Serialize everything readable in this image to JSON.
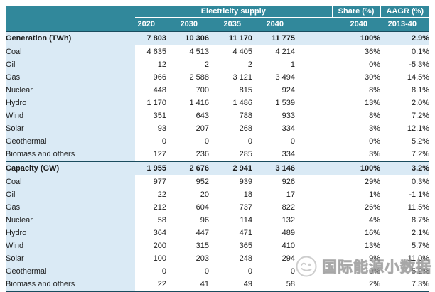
{
  "chart_data": {
    "type": "table",
    "header": {
      "group_electricity": "Electricity supply",
      "group_share": "Share (%)",
      "group_aagr": "AAGR (%)",
      "years": [
        "2020",
        "2030",
        "2035",
        "2040"
      ],
      "share_year": "2040",
      "aagr_period": "2013-40"
    },
    "sections": [
      {
        "title": "Generation (TWh)",
        "totals": {
          "values": [
            "7 803",
            "10 306",
            "11 170",
            "11 775"
          ],
          "share": "100%",
          "aagr": "2.9%"
        },
        "rows": [
          {
            "label": "Coal",
            "values": [
              "4 635",
              "4 513",
              "4 405",
              "4 214"
            ],
            "share": "36%",
            "aagr": "0.1%"
          },
          {
            "label": "Oil",
            "values": [
              "12",
              "2",
              "2",
              "1"
            ],
            "share": "0%",
            "aagr": "-5.3%"
          },
          {
            "label": "Gas",
            "values": [
              "966",
              "2 588",
              "3 121",
              "3 494"
            ],
            "share": "30%",
            "aagr": "14.5%"
          },
          {
            "label": "Nuclear",
            "values": [
              "448",
              "700",
              "815",
              "924"
            ],
            "share": "8%",
            "aagr": "8.1%"
          },
          {
            "label": "Hydro",
            "values": [
              "1 170",
              "1 416",
              "1 486",
              "1 539"
            ],
            "share": "13%",
            "aagr": "2.0%"
          },
          {
            "label": "Wind",
            "values": [
              "351",
              "643",
              "788",
              "933"
            ],
            "share": "8%",
            "aagr": "7.2%"
          },
          {
            "label": "Solar",
            "values": [
              "93",
              "207",
              "268",
              "334"
            ],
            "share": "3%",
            "aagr": "12.1%"
          },
          {
            "label": "Geothermal",
            "values": [
              "0",
              "0",
              "0",
              "0"
            ],
            "share": "0%",
            "aagr": "5.2%"
          },
          {
            "label": "Biomass and others",
            "values": [
              "127",
              "236",
              "285",
              "334"
            ],
            "share": "3%",
            "aagr": "7.2%"
          }
        ]
      },
      {
        "title": "Capacity (GW)",
        "totals": {
          "values": [
            "1 955",
            "2 676",
            "2 941",
            "3 146"
          ],
          "share": "100%",
          "aagr": "3.2%"
        },
        "rows": [
          {
            "label": "Coal",
            "values": [
              "977",
              "952",
              "939",
              "926"
            ],
            "share": "29%",
            "aagr": "0.3%"
          },
          {
            "label": "Oil",
            "values": [
              "22",
              "20",
              "18",
              "17"
            ],
            "share": "1%",
            "aagr": "-1.1%"
          },
          {
            "label": "Gas",
            "values": [
              "212",
              "604",
              "737",
              "822"
            ],
            "share": "26%",
            "aagr": "11.5%"
          },
          {
            "label": "Nuclear",
            "values": [
              "58",
              "96",
              "114",
              "132"
            ],
            "share": "4%",
            "aagr": "8.7%"
          },
          {
            "label": "Hydro",
            "values": [
              "364",
              "447",
              "471",
              "489"
            ],
            "share": "16%",
            "aagr": "2.1%"
          },
          {
            "label": "Wind",
            "values": [
              "200",
              "315",
              "365",
              "410"
            ],
            "share": "13%",
            "aagr": "5.7%"
          },
          {
            "label": "Solar",
            "values": [
              "100",
              "203",
              "248",
              "294"
            ],
            "share": "9%",
            "aagr": "11.0%"
          },
          {
            "label": "Geothermal",
            "values": [
              "0",
              "0",
              "0",
              "0"
            ],
            "share": "0%",
            "aagr": "5.2%"
          },
          {
            "label": "Biomass and others",
            "values": [
              "22",
              "41",
              "49",
              "58"
            ],
            "share": "2%",
            "aagr": "7.3%"
          }
        ]
      }
    ],
    "layout": {
      "legend_position": "none",
      "grid": "off"
    }
  },
  "watermark": {
    "text": "国际能源小数据",
    "icon": "account-logo-icon"
  },
  "colors": {
    "header_bg": "#31889B",
    "header_text": "#FFFFFF",
    "row_highlight": "#DAEAF5",
    "border_dark": "#1A4C5E",
    "body_text": "#1B1B1B",
    "watermark_gray": "#A5A5A5"
  }
}
